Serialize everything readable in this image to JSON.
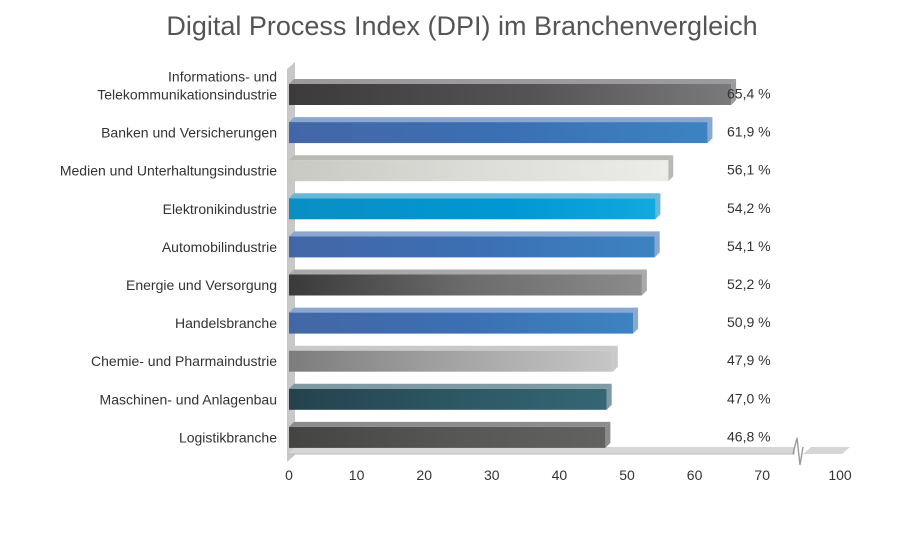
{
  "chart_data": {
    "type": "bar",
    "orientation": "horizontal",
    "title": "Digital Process Index (DPI) im Branchenvergleich",
    "categories": [
      [
        "Informations- und",
        "Telekommunikationsindustrie"
      ],
      [
        "Banken und Versicherungen"
      ],
      [
        "Medien und Unterhaltungsindustrie"
      ],
      [
        "Elektronikindustrie"
      ],
      [
        "Automobilindustrie"
      ],
      [
        "Energie und Versorgung"
      ],
      [
        "Handelsbranche"
      ],
      [
        "Chemie- und Pharmaindustrie"
      ],
      [
        "Maschinen- und Anlagenbau"
      ],
      [
        "Logistikbranche"
      ]
    ],
    "values": [
      65.4,
      61.9,
      56.1,
      54.2,
      54.1,
      52.2,
      50.9,
      47.9,
      47.0,
      46.8
    ],
    "value_labels": [
      "65,4 %",
      "61,9 %",
      "56,1 %",
      "54,2 %",
      "54,1 %",
      "52,2 %",
      "50,9 %",
      "47,9 %",
      "47,0 %",
      "46,8 %"
    ],
    "bar_styles": [
      "charcoal",
      "blue",
      "light",
      "cyan",
      "blue",
      "graphite",
      "blue",
      "silver",
      "teal",
      "darkgray"
    ],
    "xticks": [
      "0",
      "10",
      "20",
      "30",
      "40",
      "50",
      "60",
      "70",
      "100"
    ],
    "xlim": [
      0,
      100
    ],
    "axis_break": "between 70 and 100",
    "xlabel": "",
    "ylabel": ""
  }
}
